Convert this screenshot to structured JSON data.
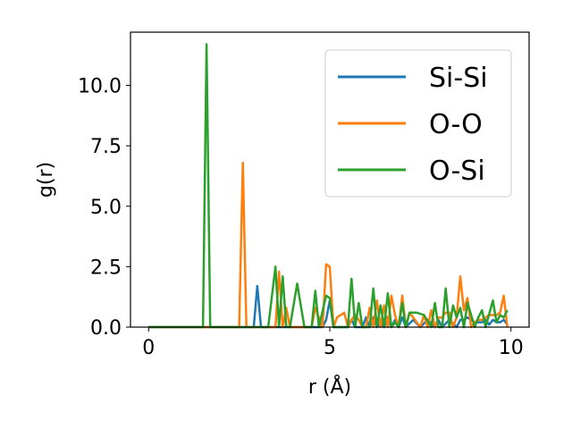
{
  "chart_data": {
    "type": "line",
    "xlabel": "r (Å)",
    "ylabel": "g(r)",
    "xlim": [
      -0.5,
      10.5
    ],
    "ylim": [
      0,
      12.2
    ],
    "xticks": [
      0,
      5,
      10
    ],
    "xtick_labels": [
      "0",
      "5",
      "10"
    ],
    "yticks": [
      0.0,
      2.5,
      5.0,
      7.5,
      10.0
    ],
    "ytick_labels": [
      "0.0",
      "2.5",
      "5.0",
      "7.5",
      "10.0"
    ],
    "legend_position": "top-right",
    "grid": false,
    "series": [
      {
        "name": "Si-Si",
        "color": "#1f77b4",
        "x": [
          0,
          2.8,
          2.9,
          3.0,
          3.1,
          3.2,
          4.7,
          4.8,
          4.9,
          5.0,
          5.1,
          5.2,
          5.5,
          5.6,
          5.7,
          5.8,
          5.9,
          6.0,
          6.1,
          6.2,
          6.3,
          6.4,
          6.5,
          6.6,
          6.7,
          6.8,
          6.9,
          7.0,
          7.1,
          7.3,
          7.5,
          7.7,
          7.9,
          8.0,
          8.1,
          8.3,
          8.5,
          8.6,
          8.7,
          8.8,
          8.9,
          9.0,
          9.1,
          9.2,
          9.3,
          9.4,
          9.5,
          9.6,
          9.7,
          9.8,
          9.9
        ],
        "y": [
          0,
          0,
          0,
          1.7,
          0,
          0,
          0,
          0,
          0.3,
          1.1,
          0,
          0,
          0,
          0.3,
          0,
          0,
          0,
          0.4,
          0,
          0.4,
          0,
          0.2,
          0,
          0.4,
          0,
          0.3,
          0,
          0.4,
          0,
          0.3,
          0,
          0.3,
          0,
          0.3,
          0,
          0.3,
          0,
          0.3,
          0.3,
          0.4,
          0.3,
          0.2,
          0.2,
          0.2,
          0.3,
          0.1,
          0.3,
          0.2,
          0.2,
          0.3,
          0.1
        ]
      },
      {
        "name": "O-O",
        "color": "#ff7f0e",
        "x": [
          0,
          2.5,
          2.6,
          2.7,
          2.8,
          3.4,
          3.5,
          3.6,
          3.7,
          3.8,
          3.9,
          4.0,
          4.2,
          4.4,
          4.5,
          4.6,
          4.8,
          4.9,
          5.0,
          5.1,
          5.2,
          5.4,
          5.5,
          5.6,
          5.7,
          5.8,
          5.9,
          6.0,
          6.1,
          6.2,
          6.3,
          6.4,
          6.5,
          6.6,
          6.7,
          6.8,
          6.9,
          7.0,
          7.1,
          7.2,
          7.3,
          7.5,
          7.6,
          7.7,
          7.8,
          7.9,
          8.0,
          8.1,
          8.2,
          8.3,
          8.4,
          8.5,
          8.6,
          8.7,
          8.8,
          8.9,
          9.0,
          9.1,
          9.2,
          9.3,
          9.4,
          9.5,
          9.6,
          9.7,
          9.8,
          9.9
        ],
        "y": [
          0,
          0,
          6.8,
          0,
          0,
          0,
          0,
          2.3,
          0,
          0.8,
          0,
          0,
          0,
          0,
          0,
          0.8,
          0,
          2.6,
          2.5,
          0,
          0.4,
          0.6,
          0,
          0.3,
          0.5,
          0.3,
          0,
          0,
          0.8,
          0,
          1.1,
          0,
          0.9,
          0,
          1.3,
          0.5,
          0,
          1.3,
          0,
          0.6,
          0.4,
          0,
          0.5,
          0,
          0.7,
          0,
          0.4,
          0.4,
          0.6,
          0.6,
          0,
          0.4,
          2.1,
          0.7,
          1.2,
          0,
          0.2,
          0.3,
          0.3,
          0.4,
          0.5,
          0.5,
          0.5,
          0.6,
          1.3,
          0
        ]
      },
      {
        "name": "O-Si",
        "color": "#2ca02c",
        "x": [
          0,
          1.5,
          1.6,
          1.7,
          3.3,
          3.5,
          3.6,
          3.7,
          3.8,
          3.9,
          4.1,
          4.3,
          4.5,
          4.6,
          4.7,
          4.9,
          5.0,
          5.1,
          5.3,
          5.5,
          5.6,
          5.7,
          5.8,
          5.9,
          6.1,
          6.2,
          6.3,
          6.4,
          6.5,
          6.6,
          6.7,
          6.8,
          6.9,
          7.0,
          7.1,
          7.2,
          7.4,
          7.6,
          7.8,
          7.9,
          8.0,
          8.1,
          8.2,
          8.3,
          8.4,
          8.5,
          8.6,
          8.7,
          8.8,
          9.0,
          9.1,
          9.2,
          9.3,
          9.5,
          9.6,
          9.7,
          9.8,
          9.9
        ],
        "y": [
          0,
          0,
          11.7,
          0,
          0,
          2.5,
          0,
          2.1,
          0,
          0,
          1.8,
          0,
          0,
          1.5,
          0,
          1.3,
          1.2,
          0,
          0,
          0,
          2.0,
          0,
          1.0,
          0,
          0,
          1.6,
          0,
          0.9,
          0,
          1.4,
          0,
          0.2,
          0,
          1.0,
          0,
          0.6,
          0.6,
          0.5,
          0,
          1.0,
          0,
          0,
          1.6,
          0,
          0.9,
          0.4,
          0.8,
          0,
          1.0,
          0,
          0.4,
          0.7,
          0,
          1.1,
          0.2,
          0.5,
          0.4,
          0.7
        ]
      }
    ]
  }
}
